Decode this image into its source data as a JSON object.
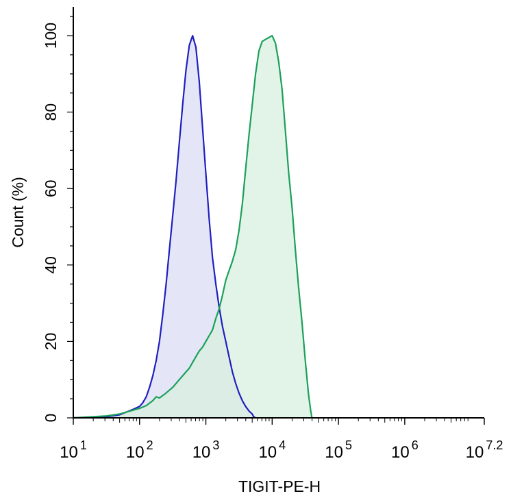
{
  "chart_data": {
    "type": "area",
    "title": "",
    "xlabel": "TIGIT-PE-H",
    "ylabel": "Count  (%)",
    "xscale": "log",
    "xlim": [
      1,
      7.2
    ],
    "ylim": [
      0,
      107
    ],
    "grid": false,
    "legend": "none",
    "x_ticks": [
      {
        "value": 1,
        "base": "10",
        "exp": "1"
      },
      {
        "value": 2,
        "base": "10",
        "exp": "2"
      },
      {
        "value": 3,
        "base": "10",
        "exp": "3"
      },
      {
        "value": 4,
        "base": "10",
        "exp": "4"
      },
      {
        "value": 5,
        "base": "10",
        "exp": "5"
      },
      {
        "value": 6,
        "base": "10",
        "exp": "6"
      },
      {
        "value": 7.2,
        "base": "10",
        "exp": "7.2"
      }
    ],
    "y_ticks": [
      "0",
      "20",
      "40",
      "60",
      "80",
      "100"
    ],
    "series": [
      {
        "color": "#1f1fbf",
        "fill": "#dcdcf5",
        "points": [
          [
            1.0,
            0
          ],
          [
            1.3,
            0.2
          ],
          [
            1.5,
            0.3
          ],
          [
            1.7,
            0.8
          ],
          [
            1.8,
            1.5
          ],
          [
            1.9,
            2.2
          ],
          [
            2.0,
            3.0
          ],
          [
            2.05,
            4.0
          ],
          [
            2.1,
            5.5
          ],
          [
            2.15,
            8
          ],
          [
            2.2,
            11
          ],
          [
            2.25,
            15
          ],
          [
            2.3,
            20
          ],
          [
            2.35,
            27
          ],
          [
            2.4,
            35
          ],
          [
            2.45,
            44
          ],
          [
            2.5,
            53
          ],
          [
            2.55,
            62
          ],
          [
            2.6,
            72
          ],
          [
            2.65,
            82
          ],
          [
            2.7,
            91
          ],
          [
            2.75,
            97.5
          ],
          [
            2.8,
            100
          ],
          [
            2.85,
            97
          ],
          [
            2.9,
            88
          ],
          [
            2.95,
            76
          ],
          [
            3.0,
            64
          ],
          [
            3.05,
            52
          ],
          [
            3.1,
            42
          ],
          [
            3.15,
            35
          ],
          [
            3.2,
            29
          ],
          [
            3.25,
            24
          ],
          [
            3.3,
            20
          ],
          [
            3.35,
            16
          ],
          [
            3.4,
            12
          ],
          [
            3.45,
            9
          ],
          [
            3.5,
            6.5
          ],
          [
            3.55,
            4.5
          ],
          [
            3.6,
            3
          ],
          [
            3.65,
            1.8
          ],
          [
            3.7,
            1
          ],
          [
            3.72,
            0.3
          ],
          [
            3.75,
            0
          ]
        ]
      },
      {
        "color": "#1aa05a",
        "fill": "#d8efe0",
        "points": [
          [
            1.0,
            0
          ],
          [
            1.3,
            0.3
          ],
          [
            1.5,
            0.5
          ],
          [
            1.7,
            1.0
          ],
          [
            1.8,
            1.5
          ],
          [
            1.9,
            2.0
          ],
          [
            2.0,
            2.5
          ],
          [
            2.1,
            3.2
          ],
          [
            2.2,
            4.5
          ],
          [
            2.25,
            5.5
          ],
          [
            2.3,
            5.2
          ],
          [
            2.4,
            6.5
          ],
          [
            2.5,
            8
          ],
          [
            2.6,
            10
          ],
          [
            2.7,
            12
          ],
          [
            2.75,
            13
          ],
          [
            2.8,
            14.5
          ],
          [
            2.85,
            16
          ],
          [
            2.9,
            17.5
          ],
          [
            2.95,
            18.5
          ],
          [
            3.0,
            20
          ],
          [
            3.05,
            21.5
          ],
          [
            3.1,
            23
          ],
          [
            3.15,
            26
          ],
          [
            3.2,
            28.5
          ],
          [
            3.25,
            32
          ],
          [
            3.3,
            36
          ],
          [
            3.35,
            38.5
          ],
          [
            3.4,
            41
          ],
          [
            3.45,
            44
          ],
          [
            3.5,
            49
          ],
          [
            3.55,
            56
          ],
          [
            3.6,
            65
          ],
          [
            3.65,
            74
          ],
          [
            3.7,
            82
          ],
          [
            3.75,
            90
          ],
          [
            3.8,
            96
          ],
          [
            3.85,
            98.5
          ],
          [
            3.9,
            99
          ],
          [
            3.95,
            99.5
          ],
          [
            4.0,
            100
          ],
          [
            4.05,
            98
          ],
          [
            4.1,
            93
          ],
          [
            4.15,
            86
          ],
          [
            4.2,
            75
          ],
          [
            4.25,
            64
          ],
          [
            4.3,
            55
          ],
          [
            4.35,
            44
          ],
          [
            4.4,
            34
          ],
          [
            4.45,
            25
          ],
          [
            4.5,
            15
          ],
          [
            4.55,
            6
          ],
          [
            4.58,
            2
          ],
          [
            4.6,
            0
          ]
        ]
      }
    ]
  }
}
